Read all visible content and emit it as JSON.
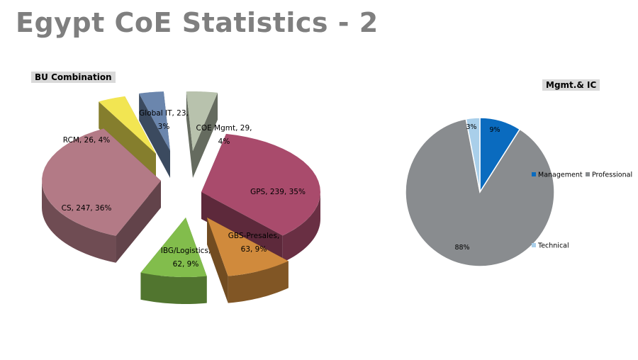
{
  "page": {
    "title": "Egypt CoE Statistics - 2"
  },
  "chart_data": [
    {
      "type": "pie",
      "variant": "3d-exploded",
      "title": "BU Combination",
      "slices": [
        {
          "name": "GPS",
          "value": 239,
          "percent": "35%",
          "color": "#a94b6c",
          "label_line1": "GPS, 239, 35%",
          "label_line2": ""
        },
        {
          "name": "GBS-Presales",
          "value": 63,
          "percent": "9%",
          "color": "#d08a3c",
          "label_line1": "GBS-Presales,",
          "label_line2": "63, 9%"
        },
        {
          "name": "IBG/Logistics",
          "value": 62,
          "percent": "9%",
          "color": "#82bd4c",
          "label_line1": "IBG/Logistics,",
          "label_line2": "62, 9%"
        },
        {
          "name": "CS",
          "value": 247,
          "percent": "36%",
          "color": "#b37a86",
          "label_line1": "CS, 247, 36%",
          "label_line2": ""
        },
        {
          "name": "RCM",
          "value": 26,
          "percent": "4%",
          "color": "#f2e552",
          "label_line1": "RCM, 26, 4%",
          "label_line2": ""
        },
        {
          "name": "Global IT",
          "value": 23,
          "percent": "3%",
          "color": "#6b86ad",
          "label_line1": "Global IT, 23,",
          "label_line2": "3%"
        },
        {
          "name": "COE Mgmt",
          "value": 29,
          "percent": "4%",
          "color": "#b8c2ad",
          "label_line1": "COE Mgmt, 29,",
          "label_line2": "4%"
        }
      ]
    },
    {
      "type": "pie",
      "title": "Mgmt.& IC",
      "slices": [
        {
          "name": "Management",
          "percent_value": 9,
          "label": "9%",
          "color": "#0a6bbf"
        },
        {
          "name": "Professional",
          "percent_value": 88,
          "label": "88%",
          "color": "#898c8f"
        },
        {
          "name": "Technical",
          "percent_value": 3,
          "label": "3%",
          "color": "#a9cfea"
        }
      ],
      "legend": [
        "Management",
        "Professional",
        "Technical"
      ]
    }
  ]
}
